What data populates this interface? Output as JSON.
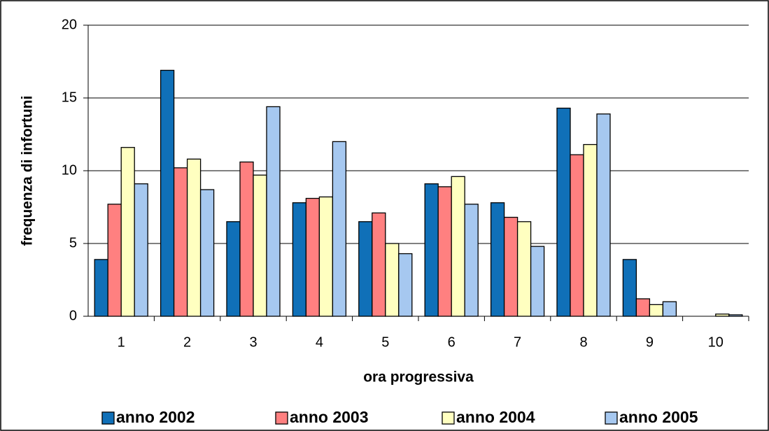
{
  "chart_data": {
    "type": "bar",
    "x_label": "ora progressiva",
    "y_label": "frequenza di infortuni",
    "categories": [
      "1",
      "2",
      "3",
      "4",
      "5",
      "6",
      "7",
      "8",
      "9",
      "10"
    ],
    "series": [
      {
        "name": "anno 2002",
        "color": "#1070b8",
        "values": [
          3.9,
          16.9,
          6.5,
          7.8,
          6.5,
          9.1,
          7.8,
          14.3,
          3.9,
          0
        ]
      },
      {
        "name": "anno 2003",
        "color": "#ff8080",
        "values": [
          7.7,
          10.2,
          10.6,
          8.1,
          7.1,
          8.9,
          6.8,
          11.1,
          1.2,
          0
        ]
      },
      {
        "name": "anno 2004",
        "color": "#ffffc0",
        "values": [
          11.6,
          10.8,
          9.7,
          8.2,
          5.0,
          9.6,
          6.5,
          11.8,
          0.8,
          0.15
        ]
      },
      {
        "name": "anno 2005",
        "color": "#a6c8f0",
        "values": [
          9.1,
          8.7,
          14.4,
          12.0,
          4.3,
          7.7,
          4.8,
          13.9,
          1.0,
          0.1
        ]
      }
    ],
    "ylim": [
      0,
      20
    ],
    "yticks": [
      0,
      5,
      10,
      15,
      20
    ],
    "grid": true,
    "legend": "bottom"
  }
}
